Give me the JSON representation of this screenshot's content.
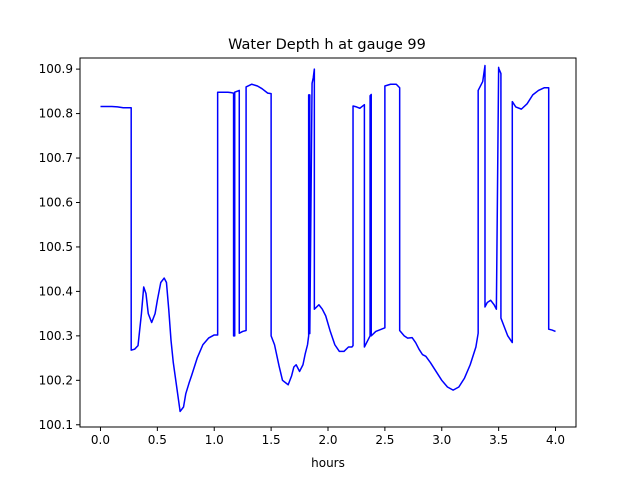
{
  "chart_data": {
    "type": "line",
    "title": "Water Depth h at gauge 99",
    "xlabel": "hours",
    "ylabel": "",
    "xlim": [
      -0.18,
      4.18
    ],
    "ylim": [
      100.095,
      100.925
    ],
    "xticks": [
      0.0,
      0.5,
      1.0,
      1.5,
      2.0,
      2.5,
      3.0,
      3.5,
      4.0
    ],
    "xtick_labels": [
      "0.0",
      "0.5",
      "1.0",
      "1.5",
      "2.0",
      "2.5",
      "3.0",
      "3.5",
      "4.0"
    ],
    "yticks": [
      100.1,
      100.2,
      100.3,
      100.4,
      100.5,
      100.6,
      100.7,
      100.8,
      100.9
    ],
    "ytick_labels": [
      "100.1",
      "100.2",
      "100.3",
      "100.4",
      "100.5",
      "100.6",
      "100.7",
      "100.8",
      "100.9"
    ],
    "grid": false,
    "series": [
      {
        "color": "#0000ff",
        "x": [
          0.0,
          0.05,
          0.1,
          0.15,
          0.2,
          0.25,
          0.27,
          0.27,
          0.3,
          0.33,
          0.36,
          0.38,
          0.4,
          0.42,
          0.45,
          0.48,
          0.5,
          0.53,
          0.56,
          0.58,
          0.6,
          0.62,
          0.64,
          0.67,
          0.7,
          0.73,
          0.75,
          0.78,
          0.8,
          0.85,
          0.9,
          0.95,
          1.0,
          1.03,
          1.03,
          1.08,
          1.12,
          1.15,
          1.17,
          1.17,
          1.18,
          1.18,
          1.2,
          1.22,
          1.22,
          1.25,
          1.28,
          1.28,
          1.33,
          1.38,
          1.42,
          1.47,
          1.5,
          1.5,
          1.53,
          1.57,
          1.6,
          1.65,
          1.68,
          1.7,
          1.72,
          1.75,
          1.78,
          1.8,
          1.82,
          1.83,
          1.83,
          1.84,
          1.84,
          1.86,
          1.87,
          1.88,
          1.88,
          1.92,
          1.95,
          1.98,
          2.02,
          2.06,
          2.1,
          2.14,
          2.18,
          2.21,
          2.22,
          2.22,
          2.25,
          2.28,
          2.3,
          2.32,
          2.32,
          2.35,
          2.37,
          2.37,
          2.38,
          2.38,
          2.42,
          2.47,
          2.5,
          2.5,
          2.55,
          2.6,
          2.63,
          2.63,
          2.67,
          2.7,
          2.74,
          2.77,
          2.8,
          2.83,
          2.86,
          2.9,
          2.95,
          3.0,
          3.05,
          3.1,
          3.15,
          3.2,
          3.25,
          3.3,
          3.32,
          3.32,
          3.36,
          3.38,
          3.38,
          3.4,
          3.43,
          3.46,
          3.48,
          3.5,
          3.5,
          3.52,
          3.52,
          3.55,
          3.58,
          3.62,
          3.62,
          3.65,
          3.7,
          3.75,
          3.8,
          3.85,
          3.9,
          3.94,
          3.94,
          3.97,
          4.0
        ],
        "y": [
          100.816,
          100.816,
          100.816,
          100.815,
          100.813,
          100.813,
          100.813,
          100.268,
          100.27,
          100.278,
          100.35,
          100.41,
          100.395,
          100.35,
          100.33,
          100.35,
          100.38,
          100.42,
          100.43,
          100.42,
          100.36,
          100.29,
          100.24,
          100.185,
          100.13,
          100.14,
          100.17,
          100.195,
          100.21,
          100.25,
          100.28,
          100.295,
          100.302,
          100.302,
          100.848,
          100.848,
          100.848,
          100.847,
          100.846,
          100.3,
          100.3,
          100.848,
          100.85,
          100.852,
          100.306,
          100.31,
          100.312,
          100.86,
          100.866,
          100.862,
          100.856,
          100.846,
          100.845,
          100.3,
          100.28,
          100.232,
          100.2,
          100.19,
          100.21,
          100.23,
          100.235,
          100.22,
          100.235,
          100.26,
          100.28,
          100.3,
          100.842,
          100.842,
          100.305,
          100.868,
          100.88,
          100.9,
          100.36,
          100.37,
          100.36,
          100.345,
          100.31,
          100.28,
          100.265,
          100.265,
          100.275,
          100.275,
          100.278,
          100.817,
          100.815,
          100.812,
          100.816,
          100.82,
          100.275,
          100.29,
          100.3,
          100.84,
          100.843,
          100.3,
          100.31,
          100.315,
          100.318,
          100.862,
          100.866,
          100.866,
          100.858,
          100.312,
          100.3,
          100.295,
          100.296,
          100.285,
          100.27,
          100.258,
          100.254,
          100.24,
          100.22,
          100.2,
          100.185,
          100.178,
          100.185,
          100.205,
          100.235,
          100.275,
          100.306,
          100.852,
          100.872,
          100.908,
          100.365,
          100.375,
          100.38,
          100.37,
          100.36,
          100.904,
          100.902,
          100.89,
          100.34,
          100.32,
          100.3,
          100.285,
          100.827,
          100.815,
          100.81,
          100.822,
          100.842,
          100.852,
          100.858,
          100.858,
          100.315,
          100.313,
          100.31
        ]
      }
    ]
  }
}
